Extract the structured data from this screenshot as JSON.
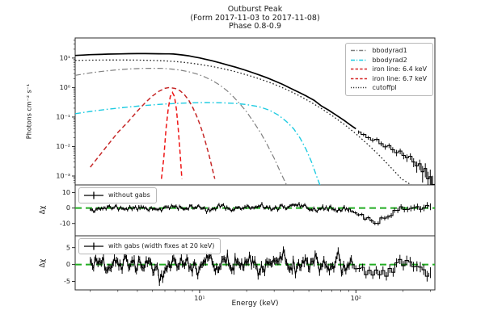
{
  "figure": {
    "title_line1": "Outburst Peak",
    "title_line2": "(Form 2017-11-03 to 2017-11-08)",
    "title_line3": "Phase 0.8-0.9"
  },
  "chart_data": {
    "type": "line",
    "xscale": "log",
    "xlim": [
      1.6,
      320
    ],
    "xlabel": "Energy (keV)",
    "xticks": [
      {
        "v": 10,
        "label": "10¹"
      },
      {
        "v": 100,
        "label": "10²"
      }
    ],
    "zero_line_color": "#22ac22",
    "main": {
      "yscale": "log",
      "ylim": [
        0.0005,
        48
      ],
      "ylabel": "Photons cm⁻² s⁻¹",
      "yticks": [
        {
          "v": 10,
          "label": "10¹"
        },
        {
          "v": 1,
          "label": "10⁰"
        },
        {
          "v": 0.1,
          "label": "10⁻¹"
        },
        {
          "v": 0.01,
          "label": "10⁻²"
        },
        {
          "v": 0.001,
          "label": "10⁻³"
        }
      ],
      "legend": [
        {
          "label": "bbodyrad1",
          "color": "#7f7f7f",
          "dash": "dashdot"
        },
        {
          "label": "bbodyrad2",
          "color": "#1ecbe1",
          "dash": "dashdot"
        },
        {
          "label": "iron line: 6.4 keV",
          "color": "#d62728",
          "dash": "dashed"
        },
        {
          "label": "iron line: 6.7 keV",
          "color": "#d62728",
          "dash": "dashed"
        },
        {
          "label": "cutoffpl",
          "color": "#333333",
          "dash": "dotted"
        }
      ],
      "series": [
        {
          "name": "cutoffpl",
          "color": "#222222",
          "style": "dotted",
          "width": 1.3,
          "points": [
            [
              1.6,
              8.3
            ],
            [
              2,
              8.5
            ],
            [
              2.6,
              8.6
            ],
            [
              3.4,
              8.6
            ],
            [
              4.2,
              8.5
            ],
            [
              5,
              8.3
            ],
            [
              6,
              8.0
            ],
            [
              7,
              7.6
            ],
            [
              8,
              7.1
            ],
            [
              9,
              6.6
            ],
            [
              10,
              6.1
            ],
            [
              12,
              5.2
            ],
            [
              14,
              4.4
            ],
            [
              17,
              3.45
            ],
            [
              20,
              2.7
            ],
            [
              24,
              2.0
            ],
            [
              29,
              1.4
            ],
            [
              35,
              0.92
            ],
            [
              42,
              0.58
            ],
            [
              50,
              0.35
            ],
            [
              60,
              0.195
            ],
            [
              72,
              0.103
            ],
            [
              85,
              0.054
            ],
            [
              100,
              0.027
            ],
            [
              120,
              0.0115
            ],
            [
              140,
              0.0052
            ],
            [
              165,
              0.0021
            ],
            [
              195,
              0.00082
            ],
            [
              230,
              0.00047
            ],
            [
              270,
              0.00042
            ],
            [
              320,
              0.0004
            ]
          ]
        },
        {
          "name": "bbodyrad1",
          "color": "#7f7f7f",
          "style": "dashdot",
          "width": 1.2,
          "points": [
            [
              1.6,
              2.6
            ],
            [
              2,
              3.15
            ],
            [
              2.5,
              3.65
            ],
            [
              3,
              4.0
            ],
            [
              3.6,
              4.3
            ],
            [
              4.3,
              4.45
            ],
            [
              5,
              4.5
            ],
            [
              5.8,
              4.45
            ],
            [
              6.6,
              4.25
            ],
            [
              7.5,
              3.9
            ],
            [
              8.5,
              3.45
            ],
            [
              9.5,
              2.95
            ],
            [
              10.5,
              2.45
            ],
            [
              12,
              1.75
            ],
            [
              13.5,
              1.2
            ],
            [
              15,
              0.78
            ],
            [
              16.5,
              0.48
            ],
            [
              18,
              0.29
            ],
            [
              20,
              0.15
            ],
            [
              22,
              0.072
            ],
            [
              24.5,
              0.03
            ],
            [
              27,
              0.012
            ],
            [
              30,
              0.004
            ],
            [
              33,
              0.0013
            ],
            [
              36,
              0.0005
            ]
          ]
        },
        {
          "name": "bbodyrad2",
          "color": "#1ecbe1",
          "style": "dashdot",
          "width": 1.4,
          "points": [
            [
              1.6,
              0.13
            ],
            [
              2,
              0.155
            ],
            [
              2.6,
              0.185
            ],
            [
              3.4,
              0.215
            ],
            [
              4.4,
              0.245
            ],
            [
              5.6,
              0.27
            ],
            [
              7,
              0.29
            ],
            [
              9,
              0.305
            ],
            [
              11,
              0.31
            ],
            [
              14,
              0.305
            ],
            [
              17,
              0.29
            ],
            [
              20,
              0.265
            ],
            [
              24,
              0.225
            ],
            [
              28,
              0.17
            ],
            [
              32,
              0.115
            ],
            [
              36,
              0.07
            ],
            [
              40,
              0.04
            ],
            [
              44,
              0.019
            ],
            [
              48,
              0.008
            ],
            [
              52,
              0.003
            ],
            [
              56,
              0.001
            ],
            [
              60,
              0.00038
            ]
          ]
        },
        {
          "name": "iron-line-6.4",
          "color": "#c62828",
          "style": "dashed",
          "width": 1.5,
          "points": [
            [
              2,
              0.002
            ],
            [
              2.5,
              0.009
            ],
            [
              3,
              0.03
            ],
            [
              3.5,
              0.07
            ],
            [
              4,
              0.16
            ],
            [
              4.5,
              0.31
            ],
            [
              5,
              0.52
            ],
            [
              5.5,
              0.75
            ],
            [
              6,
              0.94
            ],
            [
              6.4,
              1.0
            ],
            [
              7,
              0.93
            ],
            [
              7.5,
              0.78
            ],
            [
              8,
              0.57
            ],
            [
              8.5,
              0.38
            ],
            [
              9,
              0.22
            ],
            [
              9.5,
              0.12
            ],
            [
              10,
              0.06
            ],
            [
              10.5,
              0.028
            ],
            [
              11,
              0.012
            ],
            [
              11.5,
              0.005
            ],
            [
              12,
              0.002
            ],
            [
              12.5,
              0.0008
            ]
          ]
        },
        {
          "name": "iron-line-6.7",
          "color": "#ee1414",
          "style": "dashed",
          "width": 1.5,
          "points": [
            [
              5.7,
              0.0008
            ],
            [
              5.9,
              0.004
            ],
            [
              6.1,
              0.04
            ],
            [
              6.3,
              0.19
            ],
            [
              6.5,
              0.5
            ],
            [
              6.7,
              0.68
            ],
            [
              6.9,
              0.5
            ],
            [
              7.1,
              0.19
            ],
            [
              7.3,
              0.04
            ],
            [
              7.5,
              0.006
            ],
            [
              7.7,
              0.0008
            ]
          ]
        },
        {
          "name": "total-model",
          "color": "#000000",
          "style": "solid",
          "width": 1.7,
          "points": [
            [
              1.6,
              12.2
            ],
            [
              1.8,
              12.6
            ],
            [
              2,
              13.0
            ],
            [
              2.3,
              13.3
            ],
            [
              2.6,
              13.6
            ],
            [
              3,
              13.8
            ],
            [
              3.5,
              14.0
            ],
            [
              4,
              14.1
            ],
            [
              4.5,
              14.1
            ],
            [
              5,
              14.0
            ],
            [
              5.5,
              13.95
            ],
            [
              6,
              13.9
            ],
            [
              6.4,
              13.9
            ],
            [
              6.8,
              13.7
            ],
            [
              7.2,
              13.3
            ],
            [
              7.8,
              12.7
            ],
            [
              8.5,
              11.9
            ],
            [
              9.2,
              11.0
            ],
            [
              10,
              10.1
            ],
            [
              11,
              9.0
            ],
            [
              12,
              8.1
            ],
            [
              13.5,
              6.9
            ],
            [
              15,
              5.9
            ],
            [
              17,
              4.9
            ],
            [
              19,
              4.1
            ],
            [
              21.5,
              3.3
            ],
            [
              24,
              2.7
            ],
            [
              27,
              2.15
            ],
            [
              30,
              1.7
            ],
            [
              34,
              1.28
            ],
            [
              38,
              0.96
            ],
            [
              43,
              0.7
            ],
            [
              48,
              0.52
            ],
            [
              54,
              0.37
            ],
            [
              60,
              0.24
            ],
            [
              67,
              0.17
            ],
            [
              75,
              0.115
            ],
            [
              84,
              0.077
            ],
            [
              93,
              0.052
            ],
            [
              100,
              0.04
            ]
          ]
        },
        {
          "name": "total-data",
          "color": "#000000",
          "style": "steps-err",
          "width": 1.1,
          "points": [
            [
              104,
              0.031,
              0.004
            ],
            [
              112,
              0.0255,
              0.0035
            ],
            [
              120,
              0.02,
              0.003
            ],
            [
              128,
              0.0165,
              0.0027
            ],
            [
              136,
              0.0175,
              0.0027
            ],
            [
              145,
              0.0125,
              0.0023
            ],
            [
              154,
              0.0098,
              0.002
            ],
            [
              163,
              0.0108,
              0.002
            ],
            [
              172,
              0.0078,
              0.0017
            ],
            [
              182,
              0.0062,
              0.0015
            ],
            [
              192,
              0.007,
              0.0015
            ],
            [
              202,
              0.005,
              0.0013
            ],
            [
              212,
              0.0042,
              0.0012
            ],
            [
              223,
              0.0047,
              0.0012
            ],
            [
              234,
              0.003,
              0.001
            ],
            [
              245,
              0.0022,
              0.0009
            ],
            [
              256,
              0.0026,
              0.001
            ],
            [
              267,
              0.0014,
              0.0008
            ],
            [
              278,
              0.0018,
              0.0009
            ],
            [
              289,
              0.0008,
              0.0006
            ],
            [
              299,
              0.00095,
              0.0007
            ],
            [
              309,
              0.00052,
              0.0005
            ]
          ]
        }
      ]
    },
    "resid1": {
      "ylabel": "Δχ",
      "ylim": [
        -18,
        15
      ],
      "yticks": [
        {
          "v": 10,
          "label": "10"
        },
        {
          "v": 0,
          "label": "0"
        },
        {
          "v": -10,
          "label": "-10"
        }
      ],
      "legend_label": "without gabs",
      "noise": {
        "seed": 11,
        "e_start": 2,
        "e_dense_end": 90,
        "n_dense": 230,
        "amp": 1.05,
        "bar": 0.85,
        "n_coarse": 26,
        "coarse_amp": 1.0,
        "bar_end": 2.2,
        "dips": [
          {
            "center": 132,
            "depth": -8.8,
            "sigma": 0.072
          },
          {
            "center": 100,
            "depth": -1.2,
            "sigma": 0.14
          },
          {
            "center": 235,
            "depth": 0.8,
            "sigma": 0.05
          }
        ]
      }
    },
    "resid2": {
      "ylabel": "Δχ",
      "ylim": [
        -7.5,
        8.5
      ],
      "yticks": [
        {
          "v": 5,
          "label": "5"
        },
        {
          "v": 0,
          "label": "0"
        },
        {
          "v": -5,
          "label": "-5"
        }
      ],
      "legend_label": "with gabs (width fixes at 20 keV)",
      "noise": {
        "seed": 29,
        "e_start": 2,
        "e_dense_end": 95,
        "n_dense": 240,
        "amp": 1.5,
        "bar": 1.0,
        "n_coarse": 24,
        "coarse_amp": 1.1,
        "bar_end": 1.6,
        "dips": [
          {
            "center": 145,
            "depth": -2.6,
            "sigma": 0.06
          },
          {
            "center": 215,
            "depth": 1.0,
            "sigma": 0.06
          },
          {
            "center": 285,
            "depth": -1.6,
            "sigma": 0.045
          }
        ]
      }
    }
  }
}
